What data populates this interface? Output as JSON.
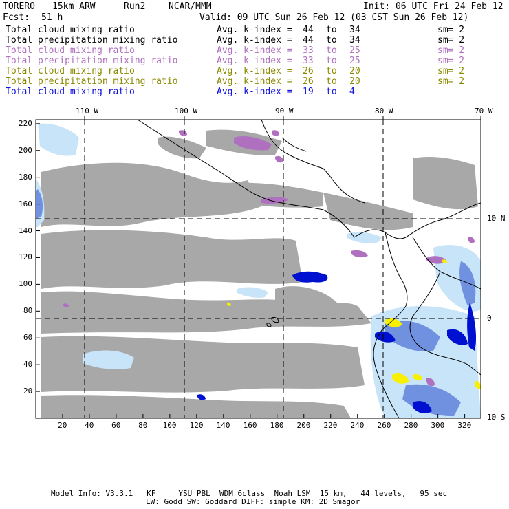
{
  "header": {
    "model": "TORERO",
    "resolution": "15km ARW",
    "run": "Run2",
    "org": "NCAR/MMM",
    "init": "Init: 06 UTC Fri 24 Feb 12",
    "fcst_label": "Fcst:",
    "fcst_value": "51 h",
    "valid": "Valid: 09 UTC Sun 26 Feb 12 (03 CST Sun 26 Feb 12)"
  },
  "legend": [
    {
      "field": "Total cloud mixing ratio",
      "avg_label": "Avg. k-index =",
      "k_from": "44",
      "to": "to",
      "k_to": "34",
      "sm": "sm= 2",
      "color": "#000000"
    },
    {
      "field": "Total precipitation mixing ratio",
      "avg_label": "Avg. k-index =",
      "k_from": "44",
      "to": "to",
      "k_to": "34",
      "sm": "sm= 2",
      "color": "#000000"
    },
    {
      "field": "Total cloud mixing ratio",
      "avg_label": "Avg. k-index =",
      "k_from": "33",
      "to": "to",
      "k_to": "25",
      "sm": "sm= 2",
      "color": "#b070c0"
    },
    {
      "field": "Total precipitation mixing ratio",
      "avg_label": "Avg. k-index =",
      "k_from": "33",
      "to": "to",
      "k_to": "25",
      "sm": "sm= 2",
      "color": "#b070c0"
    },
    {
      "field": "Total cloud mixing ratio",
      "avg_label": "Avg. k-index =",
      "k_from": "26",
      "to": "to",
      "k_to": "20",
      "sm": "sm= 2",
      "color": "#8a8a00"
    },
    {
      "field": "Total precipitation mixing ratio",
      "avg_label": "Avg. k-index =",
      "k_from": "26",
      "to": "to",
      "k_to": "20",
      "sm": "sm= 2",
      "color": "#8a8a00"
    },
    {
      "field": "Total cloud mixing ratio",
      "avg_label": "Avg. k-index =",
      "k_from": "19",
      "to": "to",
      "k_to": "4",
      "sm": "",
      "color": "#1010e0"
    }
  ],
  "lon_labels": [
    "110 W",
    "100 W",
    "90 W",
    "80 W",
    "70 W"
  ],
  "lat_labels": [
    "10 N",
    "0",
    "10 S"
  ],
  "x_ticks": [
    "20",
    "40",
    "60",
    "80",
    "100",
    "120",
    "140",
    "160",
    "180",
    "200",
    "220",
    "240",
    "260",
    "280",
    "300",
    "320"
  ],
  "y_ticks": [
    "220",
    "200",
    "180",
    "160",
    "140",
    "120",
    "100",
    "80",
    "60",
    "40",
    "20"
  ],
  "footer": {
    "line1": "Model Info: V3.3.1   KF     YSU PBL  WDM 6class  Noah LSM  15 km,   44 levels,   95 sec",
    "line2": "LW: Godd SW: Goddard DIFF: simple KM: 2D Smagor"
  },
  "colors": {
    "gray_cloud": "#a8a8a8",
    "light_blue": "#c8e4f8",
    "mid_blue": "#7090e0",
    "dark_blue": "#0010d0",
    "purple": "#b070c0",
    "yellow": "#f8f000"
  }
}
